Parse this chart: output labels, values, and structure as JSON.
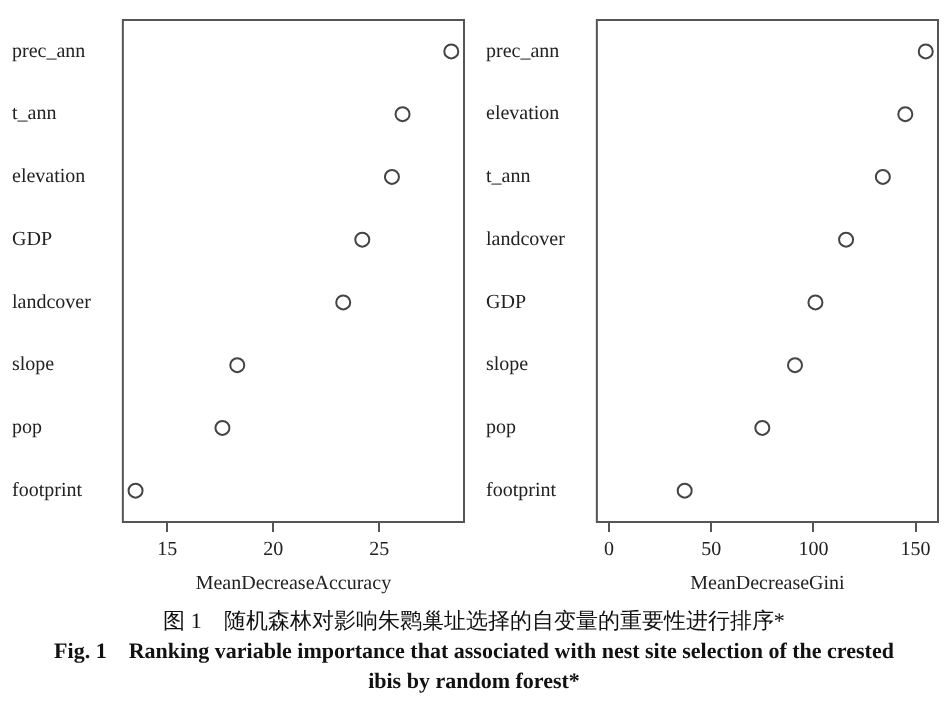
{
  "chart_data": [
    {
      "type": "scatter",
      "orientation": "horizontal",
      "categories": [
        "prec_ann",
        "t_ann",
        "elevation",
        "GDP",
        "landcover",
        "slope",
        "pop",
        "footprint"
      ],
      "values": [
        28.4,
        26.1,
        25.6,
        24.2,
        23.3,
        18.3,
        17.6,
        13.5
      ],
      "color": "#444444",
      "marker": "circle",
      "grid": false,
      "xlim": [
        12.9,
        29
      ],
      "xticks": [
        15,
        20,
        25
      ],
      "xlabel": "MeanDecreaseAccuracy",
      "annotations": [
        "图 1　随机森林对影响朱鹮巢址选择的自变量的重要性进行排序*",
        "Fig. 1　Ranking variable importance that associated with nest site selection of the crested ibis by random forest*"
      ]
    },
    {
      "type": "scatter",
      "orientation": "horizontal",
      "categories": [
        "prec_ann",
        "elevation",
        "t_ann",
        "landcover",
        "GDP",
        "slope",
        "pop",
        "footprint"
      ],
      "values": [
        155,
        145,
        134,
        116,
        101,
        91,
        75,
        37
      ],
      "color": "#444444",
      "marker": "circle",
      "grid": false,
      "xlim": [
        -6,
        161
      ],
      "xticks": [
        0,
        50,
        100,
        150
      ],
      "xlabel": "MeanDecreaseGini"
    }
  ]
}
